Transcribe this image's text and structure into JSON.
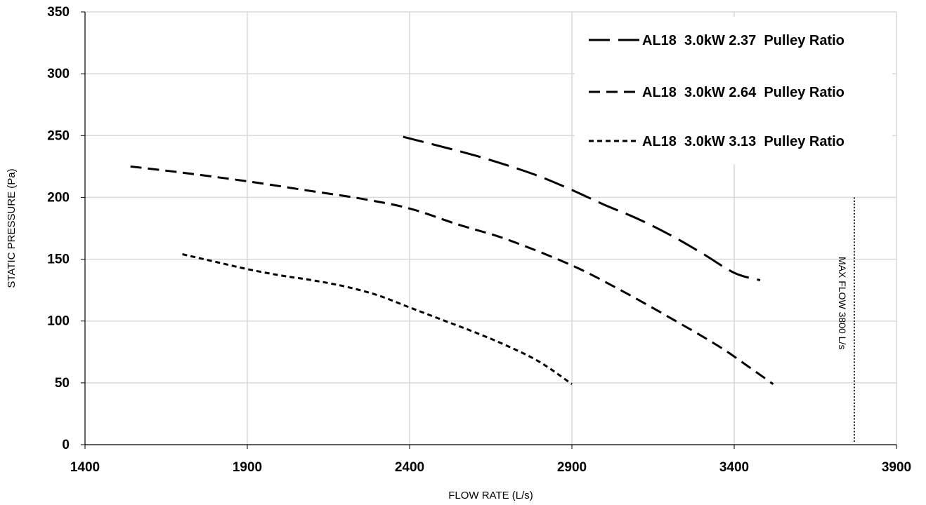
{
  "chart_data": {
    "type": "line",
    "xlabel": "FLOW RATE (L/s)",
    "ylabel": "STATIC PRESSURE (Pa)",
    "xlim": [
      1400,
      3900
    ],
    "ylim": [
      0,
      350
    ],
    "xticks": [
      1400,
      1900,
      2400,
      2900,
      3400,
      3900
    ],
    "yticks": [
      0,
      50,
      100,
      150,
      200,
      250,
      300,
      350
    ],
    "grid": true,
    "legend_position": "top-right",
    "series": [
      {
        "name": "AL18  3.0kW 2.37  Pulley Ratio",
        "dash": "long-dash",
        "x": [
          2380,
          2500,
          2600,
          2700,
          2800,
          2900,
          3000,
          3100,
          3200,
          3300,
          3400,
          3480
        ],
        "y": [
          249,
          241,
          234,
          226,
          217,
          206,
          194,
          183,
          170,
          155,
          139,
          133
        ]
      },
      {
        "name": "AL18  3.0kW 2.64  Pulley Ratio",
        "dash": "dash",
        "x": [
          1540,
          1700,
          1900,
          2100,
          2250,
          2400,
          2550,
          2700,
          2900,
          3050,
          3200,
          3350,
          3450,
          3520
        ],
        "y": [
          225,
          220,
          213,
          205,
          199,
          191,
          178,
          166,
          145,
          125,
          103,
          80,
          62,
          49
        ]
      },
      {
        "name": "AL18  3.0kW 3.13  Pulley Ratio",
        "dash": "short-dash",
        "x": [
          1700,
          1800,
          1900,
          2000,
          2100,
          2200,
          2300,
          2400,
          2500,
          2600,
          2700,
          2800,
          2900
        ],
        "y": [
          154,
          148,
          142,
          137,
          133,
          128,
          121,
          111,
          101,
          91,
          80,
          67,
          49
        ]
      }
    ],
    "annotations": [
      {
        "type": "vline",
        "x": 3770,
        "label": "MAX FLOW 3800 L/s",
        "style": "dotted"
      }
    ]
  }
}
